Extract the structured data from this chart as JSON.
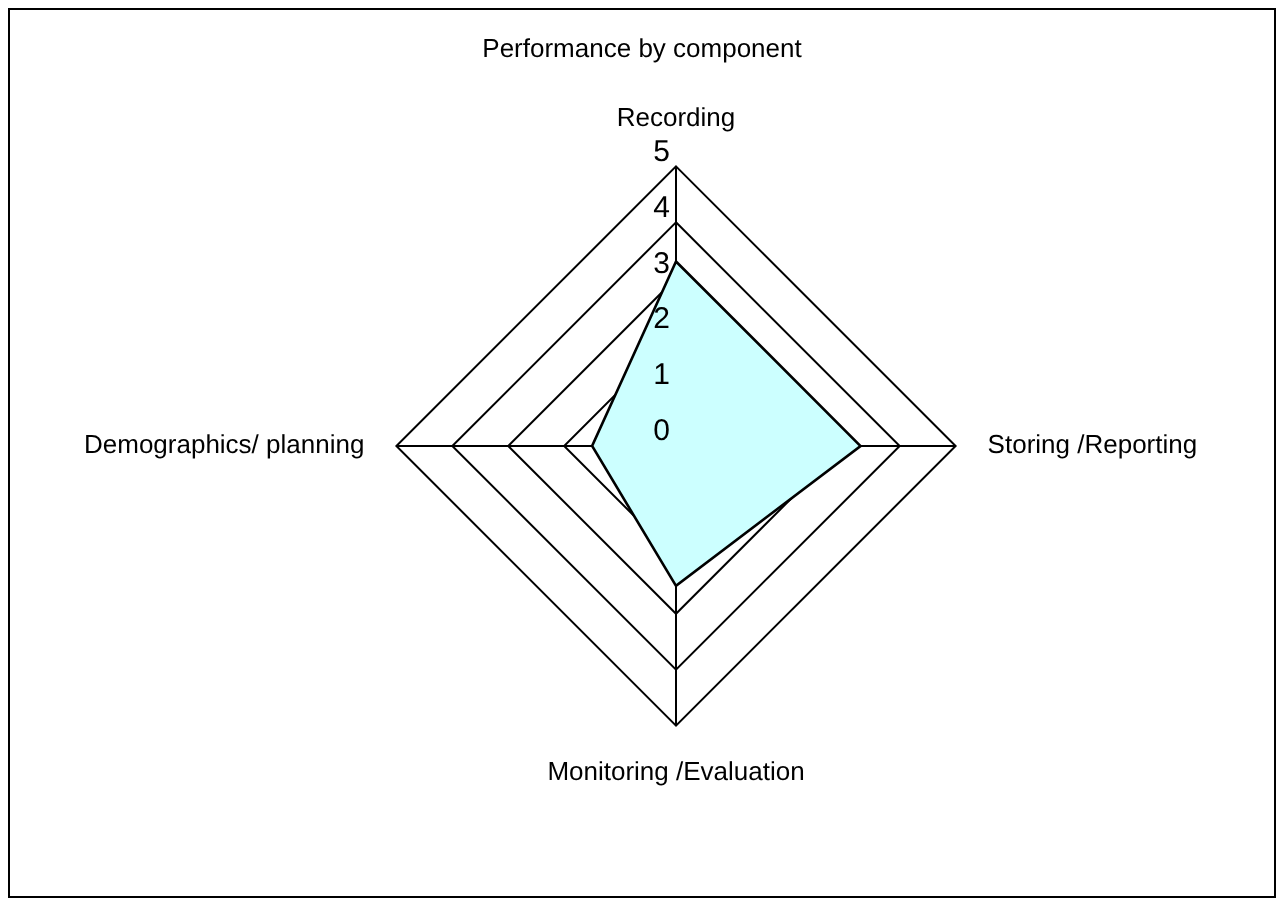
{
  "chart_data": {
    "type": "radar",
    "title": "Performance by component",
    "categories": [
      "Recording",
      "Storing /Reporting",
      "Monitoring /Evaluation",
      "Demographics/ planning"
    ],
    "series": [
      {
        "color": "#ccffff",
        "values": [
          3.3,
          3.3,
          2.5,
          1.5
        ]
      }
    ],
    "ylim": [
      0,
      5
    ],
    "yticks": [
      0,
      1,
      2,
      3,
      4,
      5
    ],
    "grid": true,
    "legend": false,
    "marker": "none"
  }
}
